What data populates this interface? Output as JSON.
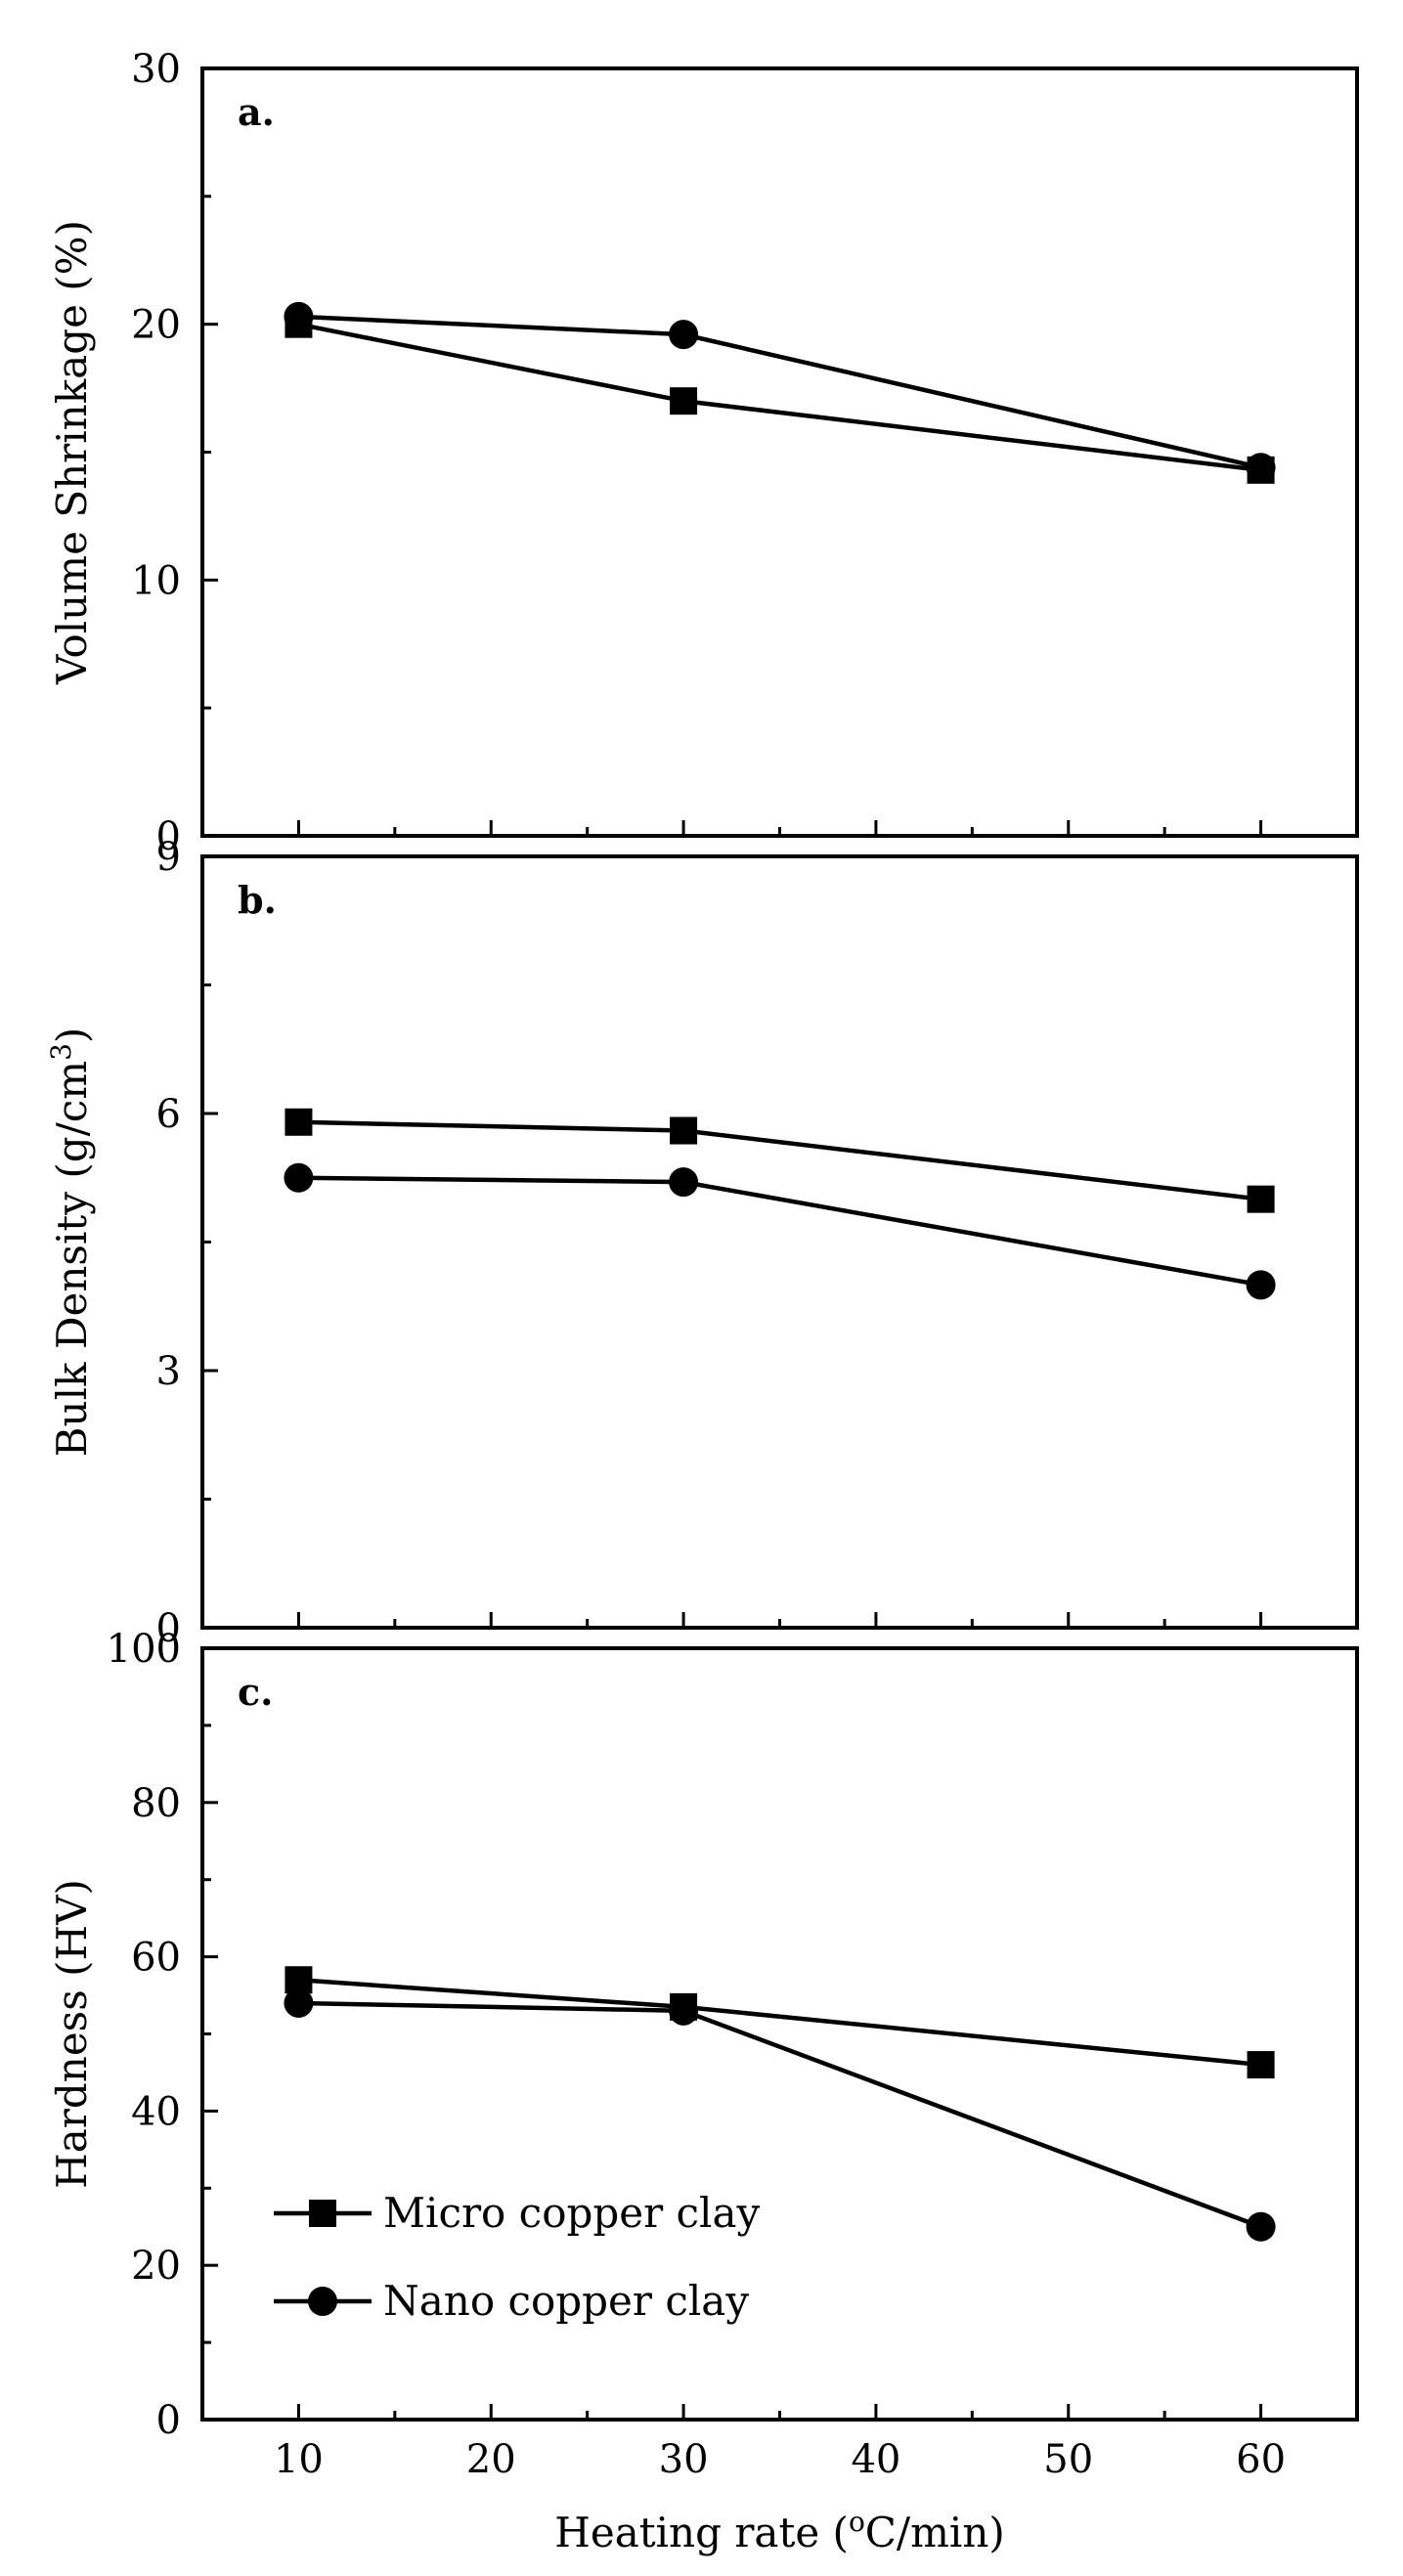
{
  "chart_data": [
    {
      "type": "line",
      "panel_label": "a.",
      "ylabel": "Volume Shrinkage (%)",
      "xlabel": "",
      "ylim": [
        0,
        30
      ],
      "yticks": [
        0,
        10,
        20,
        30
      ],
      "x": [
        10,
        30,
        60
      ],
      "series": [
        {
          "name": "Micro copper clay",
          "marker": "square",
          "values": [
            20.0,
            17.0,
            14.3
          ]
        },
        {
          "name": "Nano copper clay",
          "marker": "circle",
          "values": [
            20.3,
            19.6,
            14.4
          ]
        }
      ]
    },
    {
      "type": "line",
      "panel_label": "b.",
      "ylabel": "Bulk Density (g/cm3)",
      "xlabel": "",
      "ylim": [
        0,
        9
      ],
      "yticks": [
        0,
        3,
        6,
        9
      ],
      "x": [
        10,
        30,
        60
      ],
      "series": [
        {
          "name": "Micro copper clay",
          "marker": "square",
          "values": [
            5.9,
            5.8,
            5.0
          ]
        },
        {
          "name": "Nano copper clay",
          "marker": "circle",
          "values": [
            5.25,
            5.2,
            4.0
          ]
        }
      ]
    },
    {
      "type": "line",
      "panel_label": "c.",
      "ylabel": "Hardness (HV)",
      "xlabel": "Heating rate (oC/min)",
      "ylim": [
        0,
        100
      ],
      "yticks": [
        0,
        20,
        40,
        60,
        80,
        100
      ],
      "xlim": [
        5,
        65
      ],
      "xticks": [
        10,
        20,
        30,
        40,
        50,
        60
      ],
      "x": [
        10,
        30,
        60
      ],
      "series": [
        {
          "name": "Micro copper clay",
          "marker": "square",
          "values": [
            57,
            53.5,
            46
          ]
        },
        {
          "name": "Nano copper clay",
          "marker": "circle",
          "values": [
            54,
            53,
            25
          ]
        }
      ],
      "legend": {
        "placement": "bottom-left",
        "entries": [
          "Micro copper clay",
          "Nano copper clay"
        ]
      }
    }
  ],
  "colors": {
    "ink": "#000000",
    "background": "#ffffff"
  }
}
